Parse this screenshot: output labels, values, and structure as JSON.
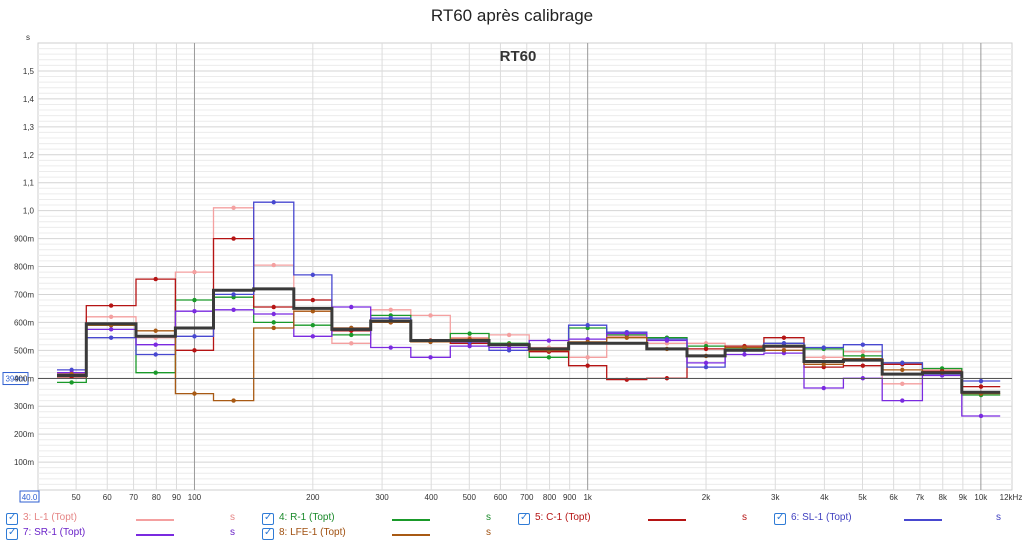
{
  "chart_data": {
    "type": "line",
    "title": "RT60 après calibrage",
    "inner_title": "RT60",
    "ylabel": "s",
    "xlabel": "",
    "x_scale": "log",
    "x_ticks": [
      "40.0",
      "50",
      "60",
      "70",
      "80",
      "90",
      "100",
      "200",
      "300",
      "400",
      "500",
      "600",
      "700",
      "800",
      "900",
      "1k",
      "2k",
      "3k",
      "4k",
      "5k",
      "6k",
      "7k",
      "8k",
      "9k",
      "10k",
      "12kHz"
    ],
    "x_tick_values": [
      40,
      50,
      60,
      70,
      80,
      90,
      100,
      200,
      300,
      400,
      500,
      600,
      700,
      800,
      900,
      1000,
      2000,
      3000,
      4000,
      5000,
      6000,
      7000,
      8000,
      9000,
      10000,
      12000
    ],
    "y_ticks": [
      "100m",
      "200m",
      "300m",
      "400m",
      "500m",
      "600m",
      "700m",
      "800m",
      "900m",
      "1,0",
      "1,1",
      "1,2",
      "1,3",
      "1,4",
      "1,5"
    ],
    "y_tick_values": [
      0.1,
      0.2,
      0.3,
      0.4,
      0.5,
      0.6,
      0.7,
      0.8,
      0.9,
      1.0,
      1.1,
      1.2,
      1.3,
      1.4,
      1.5
    ],
    "ylim": [
      0,
      1.6
    ],
    "xlim": [
      40,
      12000
    ],
    "reference": {
      "label": "399m",
      "value": 0.399
    },
    "bands": [
      44.7,
      63,
      80,
      100,
      125,
      160,
      200,
      250,
      315,
      400,
      500,
      630,
      800,
      1000,
      1250,
      1600,
      2000,
      2500,
      3150,
      4000,
      5000,
      6300,
      8000,
      10000
    ],
    "series": [
      {
        "name": "3: L-1 (Topt)",
        "unit": "s",
        "color": "#f4a0a0",
        "values": [
          0.415,
          0.62,
          0.545,
          0.78,
          1.01,
          0.805,
          0.64,
          0.525,
          0.645,
          0.625,
          0.545,
          0.555,
          0.51,
          0.475,
          0.55,
          0.525,
          0.525,
          0.5,
          0.51,
          0.475,
          0.495,
          0.38,
          0.43,
          0.37
        ]
      },
      {
        "name": "4: R-1 (Topt)",
        "unit": "s",
        "color": "#1a9a2a",
        "values": [
          0.385,
          0.59,
          0.42,
          0.68,
          0.69,
          0.6,
          0.59,
          0.555,
          0.625,
          0.535,
          0.56,
          0.525,
          0.475,
          0.58,
          0.555,
          0.545,
          0.515,
          0.505,
          0.525,
          0.505,
          0.48,
          0.455,
          0.435,
          0.34
        ]
      },
      {
        "name": "5: C-1 (Topt)",
        "unit": "s",
        "color": "#b51414",
        "values": [
          0.405,
          0.66,
          0.755,
          0.5,
          0.9,
          0.655,
          0.68,
          0.57,
          0.6,
          0.535,
          0.525,
          0.52,
          0.495,
          0.445,
          0.395,
          0.4,
          0.505,
          0.515,
          0.545,
          0.44,
          0.445,
          0.45,
          0.425,
          0.37
        ]
      },
      {
        "name": "6: SL-1 (Topt)",
        "unit": "s",
        "color": "#4848d0",
        "values": [
          0.43,
          0.545,
          0.485,
          0.55,
          0.7,
          1.03,
          0.77,
          0.58,
          0.615,
          0.53,
          0.53,
          0.5,
          0.5,
          0.59,
          0.565,
          0.54,
          0.44,
          0.5,
          0.525,
          0.51,
          0.52,
          0.455,
          0.415,
          0.39
        ]
      },
      {
        "name": "7: SR-1 (Topt)",
        "unit": "s",
        "color": "#7a2ae0",
        "values": [
          0.42,
          0.575,
          0.52,
          0.64,
          0.645,
          0.63,
          0.55,
          0.655,
          0.51,
          0.475,
          0.515,
          0.51,
          0.535,
          0.54,
          0.56,
          0.535,
          0.455,
          0.485,
          0.49,
          0.365,
          0.4,
          0.32,
          0.41,
          0.265
        ]
      },
      {
        "name": "8: LFE-1 (Topt)",
        "unit": "s",
        "color": "#a85a14",
        "values": [
          0.415,
          0.59,
          0.57,
          0.345,
          0.32,
          0.58,
          0.64,
          0.58,
          0.6,
          0.53,
          0.54,
          0.52,
          0.5,
          0.53,
          0.545,
          0.505,
          0.48,
          0.51,
          0.5,
          0.45,
          0.47,
          0.43,
          0.42,
          0.345
        ]
      },
      {
        "name": "",
        "unit": "",
        "color": "#3a3a3a",
        "bold": true,
        "values": [
          0.41,
          0.595,
          0.55,
          0.58,
          0.715,
          0.72,
          0.65,
          0.575,
          0.605,
          0.535,
          0.535,
          0.52,
          0.505,
          0.525,
          0.525,
          0.505,
          0.48,
          0.5,
          0.515,
          0.46,
          0.465,
          0.415,
          0.42,
          0.35
        ]
      }
    ]
  },
  "legend": {
    "items": [
      {
        "label": "3: L-1 (Topt)",
        "unit": "s",
        "color": "#f4a0a0",
        "text_color": "#e58585"
      },
      {
        "label": "4: R-1 (Topt)",
        "unit": "s",
        "color": "#1a9a2a",
        "text_color": "#1a8a2a"
      },
      {
        "label": "5: C-1 (Topt)",
        "unit": "s",
        "color": "#b51414",
        "text_color": "#b51414"
      },
      {
        "label": "6: SL-1 (Topt)",
        "unit": "s",
        "color": "#4848d0",
        "text_color": "#4040c0"
      },
      {
        "label": "7: SR-1 (Topt)",
        "unit": "s",
        "color": "#7a2ae0",
        "text_color": "#6a22c8"
      },
      {
        "label": "8: LFE-1 (Topt)",
        "unit": "s",
        "color": "#a85a14",
        "text_color": "#a05010"
      }
    ]
  }
}
